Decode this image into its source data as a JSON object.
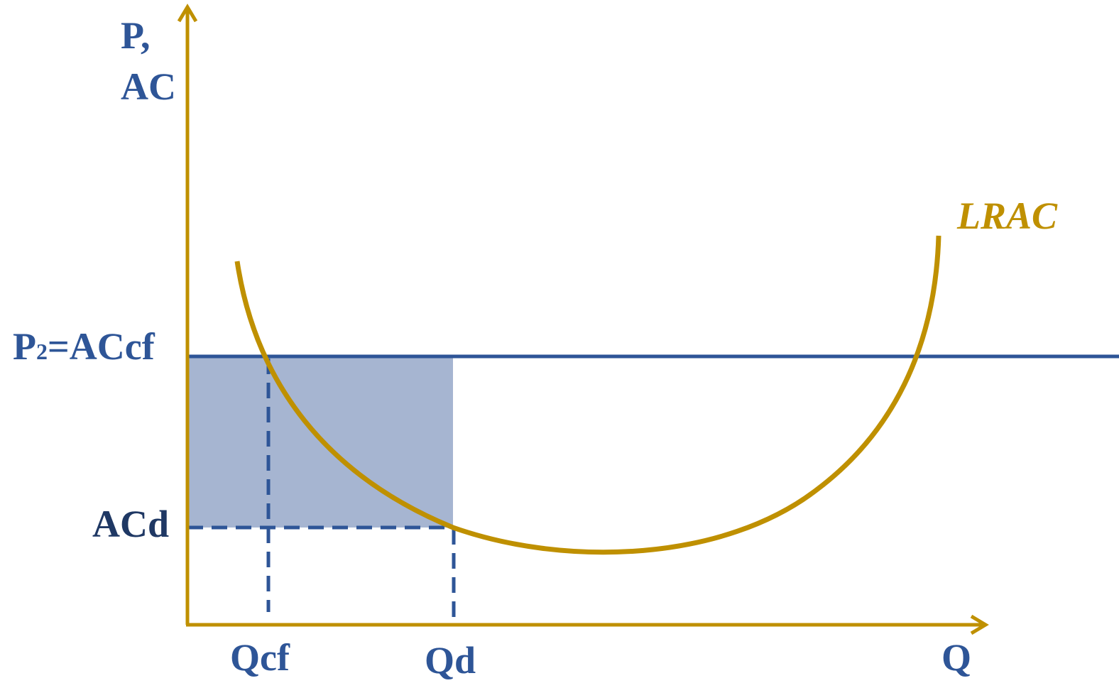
{
  "labels": {
    "y_axis_line1": "P,",
    "y_axis_line2": "AC",
    "p2_prefix": "P",
    "p2_subscript": "2",
    "p2_suffix": "=ACcf",
    "acd": "ACd",
    "curve": "LRAC",
    "qcf": "Qcf",
    "qd": "Qd",
    "x_axis": "Q"
  },
  "colors": {
    "axis": "#bf9000",
    "curve": "#bf9000",
    "price_line": "#2e5597",
    "shaded_area": "#a6b5d1",
    "dashed": "#2e5597",
    "label_blue": "#2e5597",
    "label_navy": "#1f3864",
    "label_gold": "#bf9000"
  }
}
